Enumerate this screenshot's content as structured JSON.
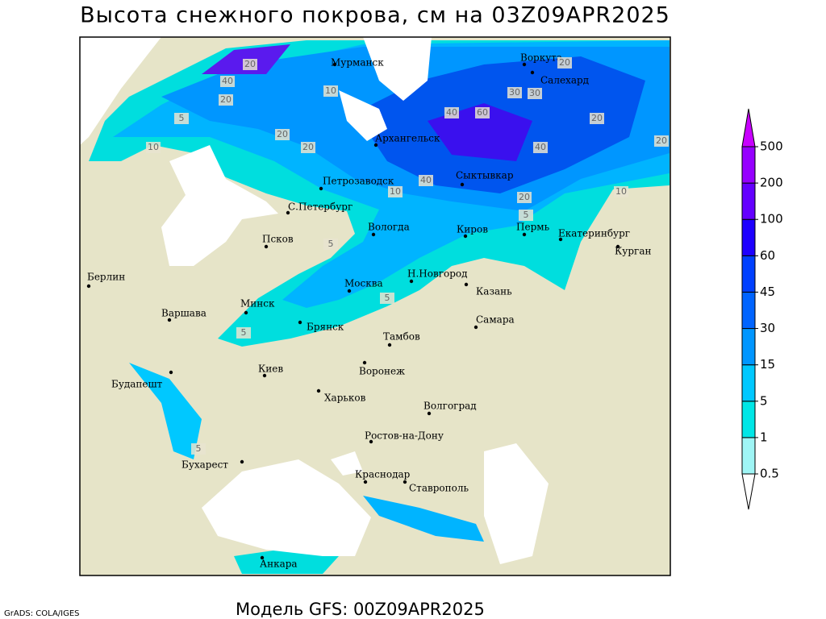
{
  "header": {
    "title": "Высота снежного покрова, см на 03Z09APR2025"
  },
  "footer": {
    "model": "Модель GFS: 00Z09APR2025",
    "credit": "GrADS: COLA/IGES"
  },
  "cities": [
    "Мурманск",
    "Воркута",
    "Салехард",
    "Архангельск",
    "Петрозаводск",
    "Сыктывкар",
    "С.Петербург",
    "Вологда",
    "Киров",
    "Пермь",
    "Екатеринбург",
    "Курган",
    "Псков",
    "Берлин",
    "Москва",
    "Н.Новгород",
    "Казань",
    "Минск",
    "Варшава",
    "Самара",
    "Брянск",
    "Тамбов",
    "Киев",
    "Воронеж",
    "Будапешт",
    "Харьков",
    "Волгоград",
    "Ростов-на-Дону",
    "Бухарест",
    "Краснодар",
    "Ставрополь",
    "Анкара"
  ],
  "contour_labels": [
    20,
    40,
    20,
    10,
    20,
    20,
    5,
    10,
    20,
    40,
    60,
    30,
    30,
    20,
    40,
    20,
    40,
    20,
    10,
    10,
    5,
    5,
    5,
    5,
    5
  ],
  "legend": {
    "levels": [
      0.5,
      1,
      5,
      15,
      30,
      45,
      60,
      100,
      200,
      500
    ],
    "colors": [
      "#ffffff",
      "#9ff5f5",
      "#00e6e6",
      "#00c8ff",
      "#0096ff",
      "#0064ff",
      "#0040ff",
      "#1e00ff",
      "#6400ff",
      "#9600ff",
      "#c800ff"
    ]
  }
}
